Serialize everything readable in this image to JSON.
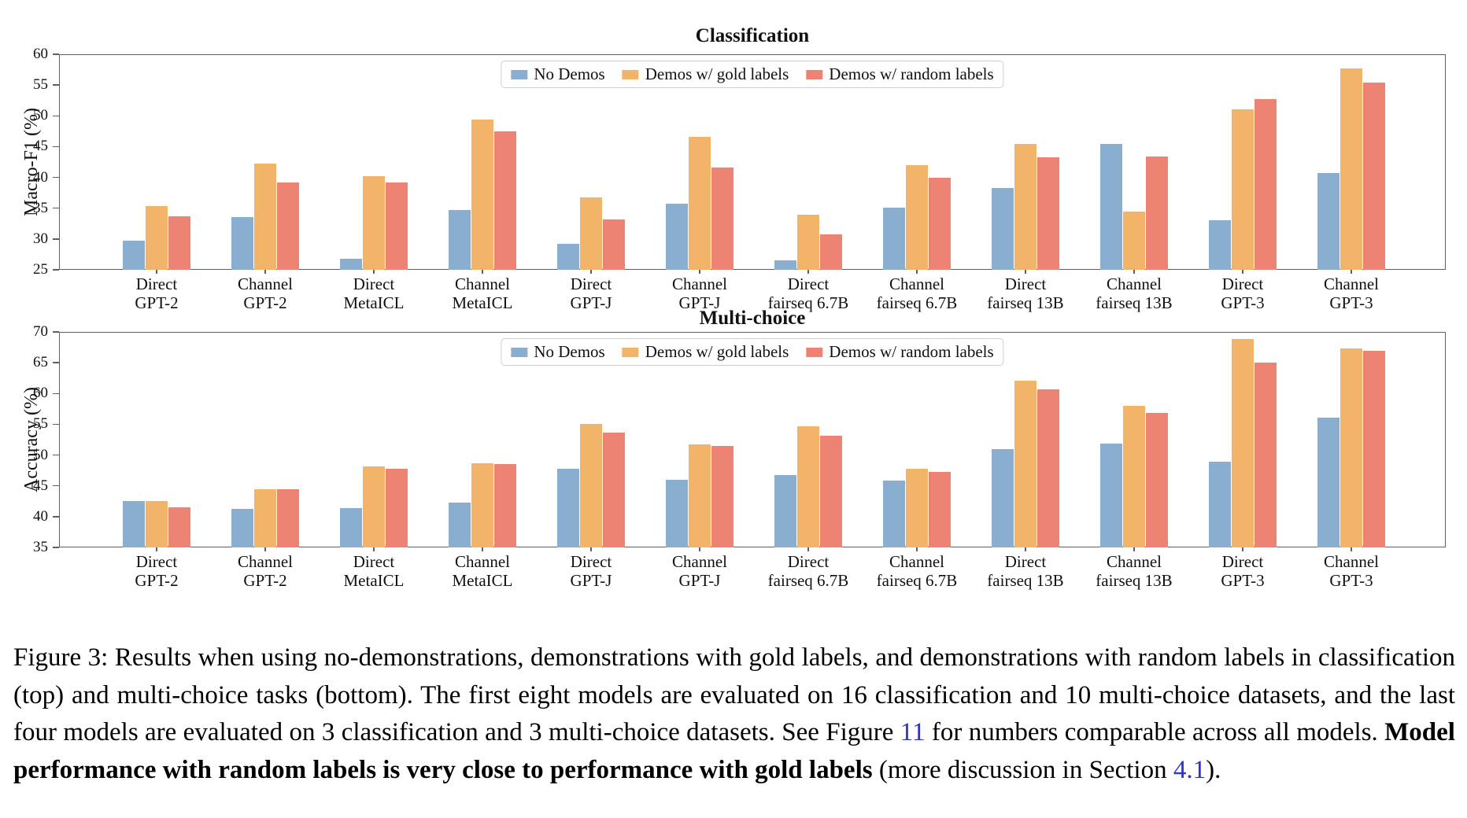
{
  "figure": {
    "link_color": "#2a35c8",
    "caption_parts": [
      {
        "style": "normal",
        "text": "Figure 3: Results when using no-demonstrations, demonstrations with gold labels, and demonstrations with random labels in classification (top) and multi-choice tasks (bottom). The first eight models are evaluated on 16 classification and 10 multi-choice datasets, and the last four models are evaluated on 3 classification and 3 multi-choice datasets. See Figure "
      },
      {
        "style": "link",
        "text": "11"
      },
      {
        "style": "normal",
        "text": " for numbers comparable across all models. "
      },
      {
        "style": "bold",
        "text": "Model performance with random labels is very close to performance with gold labels"
      },
      {
        "style": "normal",
        "text": " (more discussion in Section "
      },
      {
        "style": "link",
        "text": "4.1"
      },
      {
        "style": "normal",
        "text": ")."
      }
    ]
  },
  "chart_data": [
    {
      "type": "bar",
      "title": "Classification",
      "ylabel": "Macro-F1 (%)",
      "ylim": [
        25,
        60
      ],
      "yticks": [
        25,
        30,
        35,
        40,
        45,
        50,
        55,
        60
      ],
      "grid": false,
      "legend_position": "upper center",
      "categories": [
        [
          "Direct",
          "GPT-2"
        ],
        [
          "Channel",
          "GPT-2"
        ],
        [
          "Direct",
          "MetaICL"
        ],
        [
          "Channel",
          "MetaICL"
        ],
        [
          "Direct",
          "GPT-J"
        ],
        [
          "Channel",
          "GPT-J"
        ],
        [
          "Direct",
          "fairseq 6.7B"
        ],
        [
          "Channel",
          "fairseq 6.7B"
        ],
        [
          "Direct",
          "fairseq 13B"
        ],
        [
          "Channel",
          "fairseq 13B"
        ],
        [
          "Direct",
          "GPT-3"
        ],
        [
          "Channel",
          "GPT-3"
        ]
      ],
      "series": [
        {
          "name": "No Demos",
          "color": "#8aaed0",
          "values": [
            29.7,
            33.5,
            26.8,
            34.7,
            29.2,
            35.7,
            26.5,
            35.1,
            38.3,
            45.5,
            33.0,
            40.7
          ]
        },
        {
          "name": "Demos w/ gold labels",
          "color": "#f1b468",
          "values": [
            35.4,
            42.2,
            40.2,
            49.4,
            36.8,
            46.6,
            33.9,
            42.0,
            45.5,
            34.5,
            51.1,
            57.7
          ]
        },
        {
          "name": "Demos w/ random labels",
          "color": "#ec8373",
          "values": [
            33.7,
            39.2,
            39.2,
            47.5,
            33.2,
            41.6,
            30.8,
            40.0,
            43.3,
            43.4,
            52.7,
            55.4
          ]
        }
      ]
    },
    {
      "type": "bar",
      "title": "Multi-choice",
      "ylabel": "Accuracy (%)",
      "ylim": [
        35,
        70
      ],
      "yticks": [
        35,
        40,
        45,
        50,
        55,
        60,
        65,
        70
      ],
      "grid": false,
      "legend_position": "upper center",
      "categories": [
        [
          "Direct",
          "GPT-2"
        ],
        [
          "Channel",
          "GPT-2"
        ],
        [
          "Direct",
          "MetaICL"
        ],
        [
          "Channel",
          "MetaICL"
        ],
        [
          "Direct",
          "GPT-J"
        ],
        [
          "Channel",
          "GPT-J"
        ],
        [
          "Direct",
          "fairseq 6.7B"
        ],
        [
          "Channel",
          "fairseq 6.7B"
        ],
        [
          "Direct",
          "fairseq 13B"
        ],
        [
          "Channel",
          "fairseq 13B"
        ],
        [
          "Direct",
          "GPT-3"
        ],
        [
          "Channel",
          "GPT-3"
        ]
      ],
      "series": [
        {
          "name": "No Demos",
          "color": "#8aaed0",
          "values": [
            42.6,
            41.3,
            41.4,
            42.3,
            47.8,
            46.0,
            46.8,
            45.8,
            51.0,
            51.8,
            48.9,
            56.1
          ]
        },
        {
          "name": "Demos w/ gold labels",
          "color": "#f1b468",
          "values": [
            42.5,
            44.4,
            48.2,
            48.7,
            55.1,
            51.7,
            54.7,
            47.8,
            62.1,
            58.0,
            68.8,
            67.3
          ]
        },
        {
          "name": "Demos w/ random labels",
          "color": "#ec8373",
          "values": [
            41.5,
            44.4,
            47.8,
            48.5,
            53.7,
            51.5,
            53.2,
            47.2,
            60.7,
            56.9,
            65.0,
            66.9
          ]
        }
      ]
    }
  ]
}
